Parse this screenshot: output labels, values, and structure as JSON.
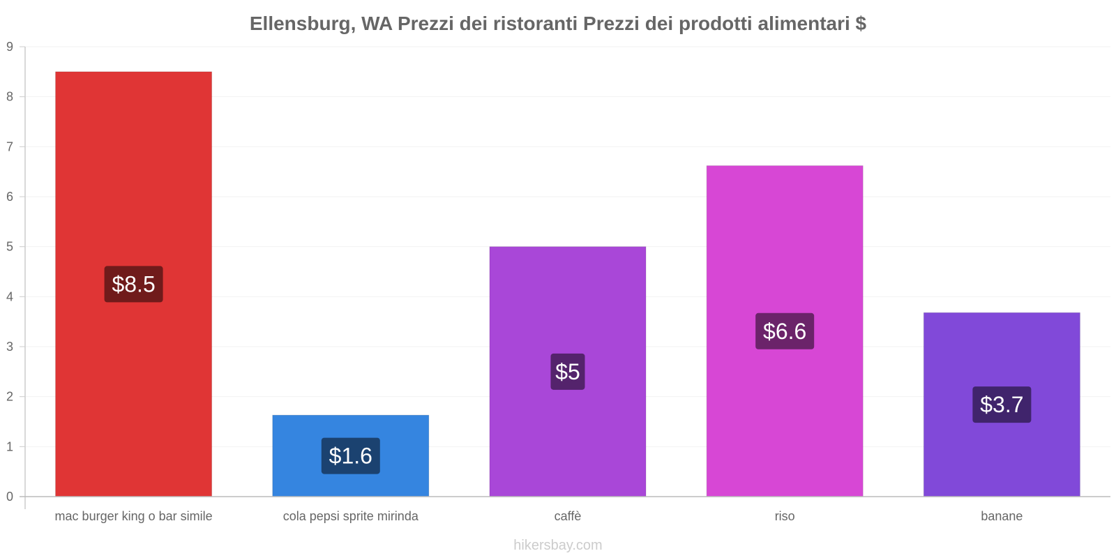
{
  "chart_data": {
    "type": "bar",
    "title": "Ellensburg, WA Prezzi dei ristoranti Prezzi dei prodotti alimentari $",
    "xlabel": "",
    "ylabel": "",
    "ylim": [
      0,
      9
    ],
    "yticks": [
      "0",
      "1",
      "2",
      "3",
      "4",
      "5",
      "6",
      "7",
      "8",
      "9"
    ],
    "grid": true,
    "categories": [
      "mac burger king o bar simile",
      "cola pepsi sprite mirinda",
      "caffè",
      "riso",
      "banane"
    ],
    "values": [
      8.5,
      1.63,
      5.0,
      6.62,
      3.68
    ],
    "value_labels": [
      "$8.5",
      "$1.6",
      "$5",
      "$6.6",
      "$3.7"
    ],
    "bar_colors": [
      "#e03535",
      "#3585e0",
      "#a947d8",
      "#d747d5",
      "#8149d9"
    ],
    "label_colors": [
      "#701b1b",
      "#1b4270",
      "#54236c",
      "#6b236a",
      "#40246c"
    ]
  },
  "source": "hikersbay.com"
}
